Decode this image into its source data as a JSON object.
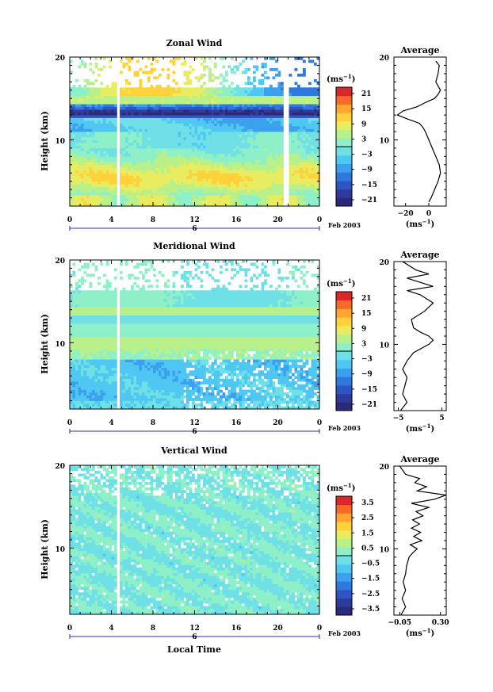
{
  "colors": {
    "scale": [
      "#2a2a78",
      "#2f3a9a",
      "#2f55c0",
      "#2f78e0",
      "#3ba0ee",
      "#4ec8f2",
      "#6ee0e6",
      "#8ef0c8",
      "#b8f08a",
      "#e8ec60",
      "#ffd23a",
      "#ffa530",
      "#f86a2a",
      "#d8282a"
    ],
    "frame": "#000000",
    "background": "#ffffff"
  },
  "x_axis": {
    "ticks": [
      "0",
      "4",
      "8",
      "12",
      "16",
      "20",
      "0"
    ],
    "day_label": "6",
    "date_label": "Feb 2003",
    "label": "Local Time"
  },
  "chart_data": [
    {
      "type": "heatmap",
      "title": "Zonal Wind",
      "ylabel": "Height (km)",
      "xlabel": "Local Time",
      "yticks": [
        "20",
        "10"
      ],
      "xlim": [
        0,
        24
      ],
      "ylim": [
        2,
        20
      ],
      "colorbar": {
        "unit": "(ms",
        "unit_sup": "−1",
        "unit_close": ")",
        "ticks": [
          "21",
          "15",
          "9",
          "3",
          "−3",
          "−9",
          "−15",
          "−21"
        ],
        "range": [
          -24,
          24
        ]
      },
      "profile": {
        "title": "Average",
        "xticks": [
          "−20",
          "0"
        ],
        "xlabel": "(ms",
        "xlabel_sup": "−1",
        "xlabel_close": ")",
        "xlim": [
          -30,
          15
        ],
        "heights": [
          2.5,
          3,
          4,
          5,
          6,
          7,
          8,
          9,
          10,
          11,
          11.5,
          12,
          12.5,
          13,
          13.5,
          14,
          14.5,
          15,
          15.5,
          16,
          17,
          18,
          19,
          19.5
        ],
        "values": [
          0,
          2,
          5,
          8,
          10,
          9,
          6,
          3,
          0,
          -3,
          -5,
          -8,
          -18,
          -27,
          -22,
          -10,
          -3,
          5,
          8,
          10,
          6,
          8,
          9,
          6
        ]
      }
    },
    {
      "type": "heatmap",
      "title": "Meridional Wind",
      "ylabel": "Height (km)",
      "xlabel": "Local Time",
      "yticks": [
        "20",
        "10"
      ],
      "xlim": [
        0,
        24
      ],
      "ylim": [
        2,
        20
      ],
      "colorbar": {
        "unit": "(ms",
        "unit_sup": "−1",
        "unit_close": ")",
        "ticks": [
          "21",
          "15",
          "9",
          "3",
          "−3",
          "−9",
          "−15",
          "−21"
        ],
        "range": [
          -24,
          24
        ]
      },
      "profile": {
        "title": "Average",
        "xticks": [
          "−5",
          "5"
        ],
        "xlabel": "(ms",
        "xlabel_sup": "−1",
        "xlabel_close": ")",
        "xlim": [
          -6,
          6
        ],
        "heights": [
          2,
          3,
          4,
          5,
          6,
          7,
          8,
          9,
          10,
          10.5,
          11,
          11.5,
          12,
          13,
          14,
          15,
          16,
          16.5,
          17,
          18,
          18.5,
          19,
          20
        ],
        "values": [
          -4.5,
          -3,
          -4,
          -3.5,
          -3,
          -4,
          -3,
          -1.5,
          2,
          3,
          2,
          0,
          -1.5,
          -2,
          1,
          3,
          0,
          -3,
          3,
          -3,
          2,
          -1,
          -4
        ]
      }
    },
    {
      "type": "heatmap",
      "title": "Vertical Wind",
      "ylabel": "Height (km)",
      "xlabel": "Local Time",
      "yticks": [
        "20",
        "10"
      ],
      "xlim": [
        0,
        24
      ],
      "ylim": [
        2,
        20
      ],
      "colorbar": {
        "unit": "(ms",
        "unit_sup": "−1",
        "unit_close": ")",
        "ticks": [
          "3.5",
          "2.5",
          "1.5",
          "0.5",
          "−0.5",
          "−1.5",
          "−2.5",
          "−3.5"
        ],
        "range": [
          -4,
          4
        ]
      },
      "profile": {
        "title": "Average",
        "xticks": [
          "−0.05",
          "0.30"
        ],
        "xlabel": "(ms",
        "xlabel_sup": "−1",
        "xlabel_close": ")",
        "xlim": [
          -0.1,
          0.35
        ],
        "heights": [
          2,
          3,
          4,
          5,
          6,
          7,
          8,
          9,
          9.5,
          10,
          10.5,
          11,
          11.5,
          12,
          12.5,
          13,
          13.5,
          14,
          14.5,
          15,
          15.5,
          16,
          16.5,
          17,
          17.5,
          18,
          18.5,
          19,
          20
        ],
        "values": [
          -0.04,
          0,
          -0.03,
          0,
          -0.02,
          0,
          0.01,
          0.03,
          0.06,
          0.1,
          0.04,
          0.14,
          0.07,
          0.13,
          0.05,
          0.12,
          0.06,
          0.15,
          0.09,
          0.2,
          0.05,
          0.25,
          0.35,
          0.1,
          0.18,
          0.08,
          0.12,
          0.0,
          -0.05
        ]
      }
    }
  ]
}
